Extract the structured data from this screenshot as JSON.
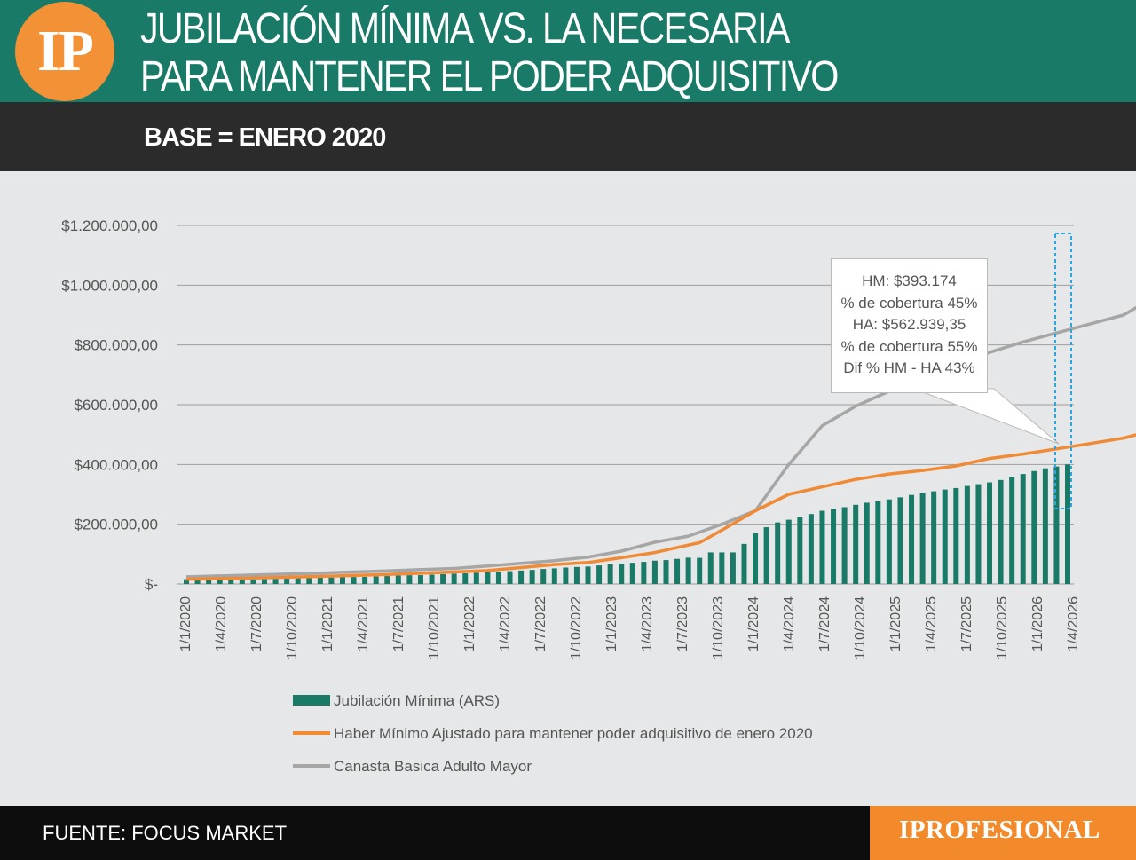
{
  "header": {
    "logo": "IP",
    "title_line1": "JUBILACIÓN MÍNIMA VS. LA NECESARIA",
    "title_line2": "PARA MANTENER EL PODER ADQUISITIVO",
    "subtitle": "BASE = ENERO 2020"
  },
  "tooltip": {
    "line1": "HM: $393.174",
    "line2": "% de cobertura 45%",
    "line3": "HA: $562.939,35",
    "line4": "% de cobertura 55%",
    "line5": "Dif % HM - HA 43%"
  },
  "footer": {
    "source": "FUENTE: FOCUS MARKET",
    "brand": "IPROFESIONAL"
  },
  "colors": {
    "title_band": "#1a7a68",
    "header_dark": "#2b2b2b",
    "logo_orange": "#f39136",
    "bars": "#1a7a68",
    "line_orange": "#f08a35",
    "line_gray": "#a6a6a6",
    "highlight": "#2aa7df"
  },
  "chart_data": {
    "type": "bar+line",
    "y_ticks": [
      "$-",
      "$200.000,00",
      "$400.000,00",
      "$600.000,00",
      "$800.000,00",
      "$1.000.000,00",
      "$1.200.000,00"
    ],
    "ylim": [
      0,
      1200000
    ],
    "x_tick_labels": [
      "1/1/2020",
      "1/4/2020",
      "1/7/2020",
      "1/10/2020",
      "1/1/2021",
      "1/4/2021",
      "1/7/2021",
      "1/10/2021",
      "1/1/2022",
      "1/4/2022",
      "1/7/2022",
      "1/10/2022",
      "1/1/2023",
      "1/4/2023",
      "1/7/2023",
      "1/10/2023",
      "1/1/2024",
      "1/4/2024",
      "1/7/2024",
      "1/10/2024",
      "1/1/2025",
      "1/4/2025",
      "1/7/2025",
      "1/10/2025",
      "1/1/2026",
      "1/4/2026"
    ],
    "series": [
      {
        "name": "Jubilación Mínima (ARS)",
        "kind": "bar",
        "color": "#1a7a68",
        "values": [
          15900,
          15900,
          15900,
          16000,
          16100,
          16700,
          17200,
          17900,
          18700,
          19300,
          19900,
          20600,
          21000,
          22000,
          23000,
          23500,
          24000,
          25500,
          26500,
          28100,
          29300,
          29600,
          31200,
          32600,
          34400,
          35600,
          37700,
          39500,
          41200,
          43000,
          45000,
          47000,
          50100,
          52200,
          55000,
          57000,
          58500,
          62000,
          66000,
          68000,
          70900,
          74000,
          78000,
          80000,
          84000,
          88000,
          87400,
          105700,
          105700,
          105700,
          134000,
          171000,
          190000,
          206000,
          215000,
          225000,
          234000,
          245000,
          252000,
          257000,
          265000,
          272000,
          278000,
          283000,
          290000,
          298000,
          304000,
          310000,
          316000,
          321000,
          328000,
          334000,
          340000,
          348000,
          358000,
          368000,
          378000,
          387000,
          393174,
          400000
        ]
      },
      {
        "name": "Haber Mínimo Ajustado para mantener poder adquisitivo de enero 2020",
        "kind": "line",
        "color": "#f08a35",
        "points": [
          [
            0,
            15900
          ],
          [
            3,
            17500
          ],
          [
            6,
            20000
          ],
          [
            9,
            22500
          ],
          [
            12,
            25500
          ],
          [
            15,
            28500
          ],
          [
            18,
            32000
          ],
          [
            21,
            36000
          ],
          [
            24,
            40000
          ],
          [
            27,
            45000
          ],
          [
            30,
            55000
          ],
          [
            33,
            65000
          ],
          [
            36,
            72000
          ],
          [
            39,
            88000
          ],
          [
            42,
            105000
          ],
          [
            45,
            130000
          ],
          [
            46,
            138000
          ],
          [
            48,
            180000
          ],
          [
            51,
            245000
          ],
          [
            54,
            300000
          ],
          [
            57,
            325000
          ],
          [
            60,
            350000
          ],
          [
            63,
            368000
          ],
          [
            66,
            380000
          ],
          [
            69,
            395000
          ],
          [
            72,
            420000
          ],
          [
            75,
            435000
          ],
          [
            78,
            452000
          ],
          [
            81,
            470000
          ],
          [
            84,
            488000
          ],
          [
            87,
            518000
          ],
          [
            90,
            548000
          ],
          [
            92,
            562939
          ]
        ]
      },
      {
        "name": "Canasta Basica Adulto Mayor",
        "kind": "line",
        "color": "#a6a6a6",
        "points": [
          [
            0,
            24000
          ],
          [
            3,
            27000
          ],
          [
            6,
            30000
          ],
          [
            9,
            33000
          ],
          [
            12,
            36500
          ],
          [
            15,
            40000
          ],
          [
            18,
            44000
          ],
          [
            21,
            48000
          ],
          [
            24,
            52000
          ],
          [
            27,
            60000
          ],
          [
            30,
            69000
          ],
          [
            33,
            78000
          ],
          [
            36,
            90000
          ],
          [
            39,
            110000
          ],
          [
            42,
            140000
          ],
          [
            45,
            160000
          ],
          [
            48,
            200000
          ],
          [
            51,
            245000
          ],
          [
            54,
            400000
          ],
          [
            57,
            530000
          ],
          [
            60,
            595000
          ],
          [
            63,
            645000
          ],
          [
            66,
            690000
          ],
          [
            69,
            735000
          ],
          [
            72,
            775000
          ],
          [
            75,
            810000
          ],
          [
            78,
            840000
          ],
          [
            81,
            870000
          ],
          [
            84,
            900000
          ],
          [
            87,
            965000
          ],
          [
            90,
            995000
          ],
          [
            92,
            1015000
          ]
        ]
      }
    ],
    "legend_position": "bottom",
    "grid": true
  }
}
